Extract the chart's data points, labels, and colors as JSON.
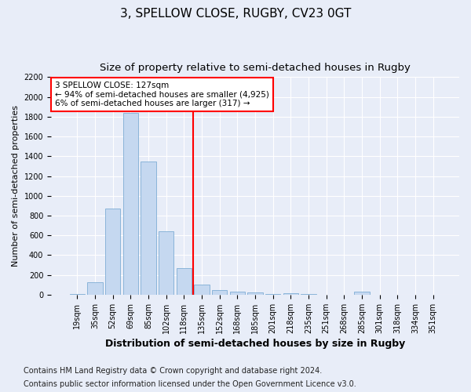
{
  "title1": "3, SPELLOW CLOSE, RUGBY, CV23 0GT",
  "title2": "Size of property relative to semi-detached houses in Rugby",
  "xlabel": "Distribution of semi-detached houses by size in Rugby",
  "ylabel": "Number of semi-detached properties",
  "categories": [
    "19sqm",
    "35sqm",
    "52sqm",
    "69sqm",
    "85sqm",
    "102sqm",
    "118sqm",
    "135sqm",
    "152sqm",
    "168sqm",
    "185sqm",
    "201sqm",
    "218sqm",
    "235sqm",
    "251sqm",
    "268sqm",
    "285sqm",
    "301sqm",
    "318sqm",
    "334sqm",
    "351sqm"
  ],
  "values": [
    10,
    125,
    870,
    1840,
    1350,
    640,
    270,
    100,
    50,
    30,
    20,
    5,
    15,
    5,
    0,
    0,
    30,
    0,
    0,
    0,
    0
  ],
  "bar_color": "#c5d8f0",
  "bar_edge_color": "#7eadd4",
  "vline_x_index": 6.5,
  "vline_color": "red",
  "annotation_text": "3 SPELLOW CLOSE: 127sqm\n← 94% of semi-detached houses are smaller (4,925)\n6% of semi-detached houses are larger (317) →",
  "annotation_box_color": "white",
  "annotation_edge_color": "red",
  "ylim": [
    0,
    2200
  ],
  "yticks": [
    0,
    200,
    400,
    600,
    800,
    1000,
    1200,
    1400,
    1600,
    1800,
    2000,
    2200
  ],
  "footer1": "Contains HM Land Registry data © Crown copyright and database right 2024.",
  "footer2": "Contains public sector information licensed under the Open Government Licence v3.0.",
  "bg_color": "#e8edf8",
  "plot_bg_color": "#e8edf8",
  "title1_fontsize": 11,
  "title2_fontsize": 9.5,
  "xlabel_fontsize": 9,
  "ylabel_fontsize": 8,
  "tick_fontsize": 7,
  "footer_fontsize": 7
}
